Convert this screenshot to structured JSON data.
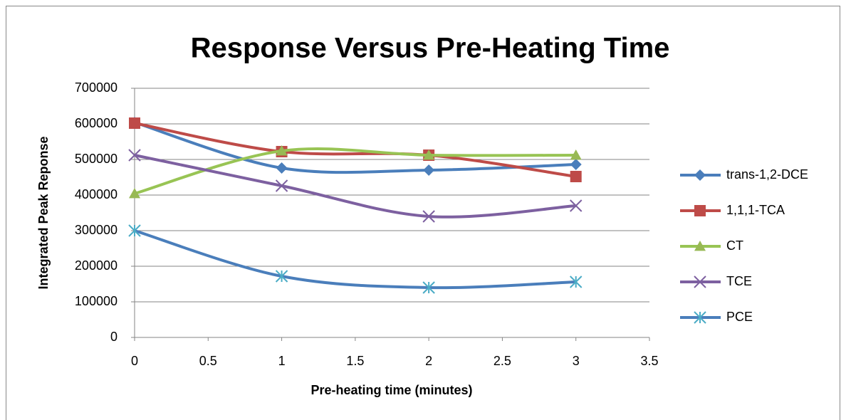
{
  "chart_data": {
    "type": "line",
    "title": "Response Versus Pre-Heating Time",
    "x_label": "Pre-heating time (minutes)",
    "y_label": "Integrated Peak Reponse",
    "x": [
      0,
      1,
      2,
      3
    ],
    "xlim": [
      0,
      3.5
    ],
    "xticks": [
      0,
      0.5,
      1,
      1.5,
      2,
      2.5,
      3,
      3.5
    ],
    "ylim": [
      0,
      700000
    ],
    "yticks": [
      0,
      100000,
      200000,
      300000,
      400000,
      500000,
      600000,
      700000
    ],
    "grid": true,
    "smooth": true,
    "legend": "right",
    "series": [
      {
        "name": "trans-1,2-DCE",
        "color": "#4a7ebb",
        "marker_color": "#4a7ebb",
        "marker": "diamond",
        "values": [
          604000,
          476000,
          470000,
          486000
        ]
      },
      {
        "name": "1,1,1-TCA",
        "color": "#be4b48",
        "marker_color": "#be4b48",
        "marker": "square",
        "values": [
          602000,
          522000,
          512000,
          452000
        ]
      },
      {
        "name": "CT",
        "color": "#98c454",
        "marker_color": "#98b954",
        "marker": "triangle",
        "values": [
          404000,
          524000,
          512000,
          512000
        ]
      },
      {
        "name": "TCE",
        "color": "#7d60a0",
        "marker_color": "#7d60a0",
        "marker": "x",
        "values": [
          512000,
          426000,
          340000,
          370000
        ]
      },
      {
        "name": "PCE",
        "color": "#4a7ebb",
        "marker_color": "#4bacc6",
        "marker": "star",
        "values": [
          300000,
          172000,
          140000,
          156000
        ]
      }
    ]
  }
}
